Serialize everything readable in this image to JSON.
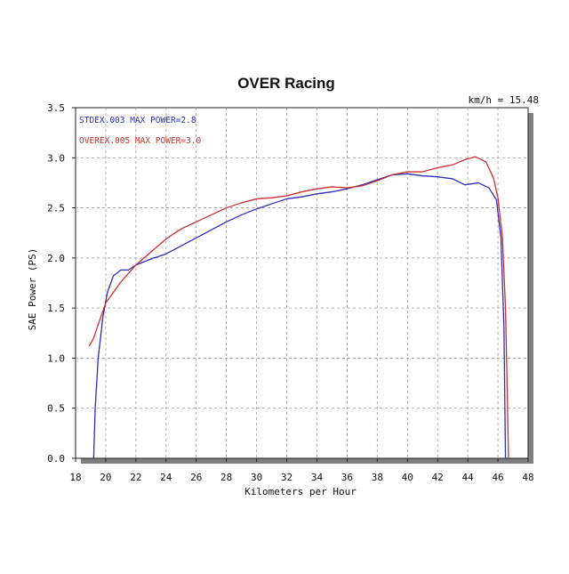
{
  "chart_data": {
    "type": "line",
    "title": "OVER Racing",
    "annotation": "km/h = 15.48",
    "xlabel": "Kilometers per Hour",
    "ylabel": "SAE Power (PS)",
    "xlim": [
      18,
      48
    ],
    "ylim": [
      0,
      3.5
    ],
    "x_ticks": [
      "18",
      "20",
      "22",
      "24",
      "26",
      "28",
      "30",
      "32",
      "34",
      "36",
      "38",
      "40",
      "42",
      "44",
      "46",
      "48"
    ],
    "y_ticks": [
      "0.0",
      "0.5",
      "1.0",
      "1.5",
      "2.0",
      "2.5",
      "3.0",
      "3.5"
    ],
    "grid": true,
    "legend_position": "top-left",
    "series": [
      {
        "name": "STDEX.003  MAX POWER=2.8",
        "color": "#2d2dbd",
        "points": [
          [
            19.2,
            0.0
          ],
          [
            19.3,
            0.5
          ],
          [
            19.5,
            1.0
          ],
          [
            19.8,
            1.4
          ],
          [
            20.1,
            1.65
          ],
          [
            20.5,
            1.82
          ],
          [
            21.0,
            1.88
          ],
          [
            21.5,
            1.88
          ],
          [
            22.0,
            1.93
          ],
          [
            23.0,
            1.99
          ],
          [
            24.0,
            2.04
          ],
          [
            25.0,
            2.12
          ],
          [
            26.0,
            2.2
          ],
          [
            27.0,
            2.28
          ],
          [
            28.0,
            2.36
          ],
          [
            29.0,
            2.43
          ],
          [
            30.0,
            2.49
          ],
          [
            31.0,
            2.54
          ],
          [
            32.0,
            2.59
          ],
          [
            33.0,
            2.61
          ],
          [
            34.0,
            2.64
          ],
          [
            35.0,
            2.66
          ],
          [
            36.0,
            2.69
          ],
          [
            37.0,
            2.73
          ],
          [
            38.0,
            2.78
          ],
          [
            39.0,
            2.83
          ],
          [
            40.0,
            2.84
          ],
          [
            41.0,
            2.82
          ],
          [
            42.0,
            2.81
          ],
          [
            43.0,
            2.79
          ],
          [
            43.8,
            2.73
          ],
          [
            44.7,
            2.75
          ],
          [
            45.4,
            2.7
          ],
          [
            45.9,
            2.58
          ],
          [
            46.2,
            2.2
          ],
          [
            46.4,
            1.3
          ],
          [
            46.5,
            0.0
          ]
        ]
      },
      {
        "name": "OVEREX.005  MAX POWER=3.0",
        "color": "#cc2f2f",
        "points": [
          [
            18.9,
            1.12
          ],
          [
            19.2,
            1.2
          ],
          [
            19.6,
            1.38
          ],
          [
            20.0,
            1.55
          ],
          [
            21.0,
            1.76
          ],
          [
            22.0,
            1.93
          ],
          [
            23.0,
            2.06
          ],
          [
            24.0,
            2.19
          ],
          [
            25.0,
            2.29
          ],
          [
            26.0,
            2.36
          ],
          [
            27.0,
            2.43
          ],
          [
            28.0,
            2.5
          ],
          [
            29.0,
            2.55
          ],
          [
            30.0,
            2.59
          ],
          [
            31.0,
            2.6
          ],
          [
            32.0,
            2.62
          ],
          [
            33.0,
            2.66
          ],
          [
            34.0,
            2.69
          ],
          [
            35.0,
            2.71
          ],
          [
            36.0,
            2.7
          ],
          [
            37.0,
            2.72
          ],
          [
            38.0,
            2.77
          ],
          [
            39.0,
            2.83
          ],
          [
            40.0,
            2.86
          ],
          [
            41.0,
            2.86
          ],
          [
            42.0,
            2.9
          ],
          [
            43.0,
            2.93
          ],
          [
            43.8,
            2.98
          ],
          [
            44.5,
            3.01
          ],
          [
            45.2,
            2.96
          ],
          [
            45.7,
            2.8
          ],
          [
            46.0,
            2.6
          ],
          [
            46.3,
            2.2
          ],
          [
            46.5,
            1.5
          ],
          [
            46.6,
            0.8
          ],
          [
            46.7,
            0.0
          ]
        ]
      }
    ]
  }
}
